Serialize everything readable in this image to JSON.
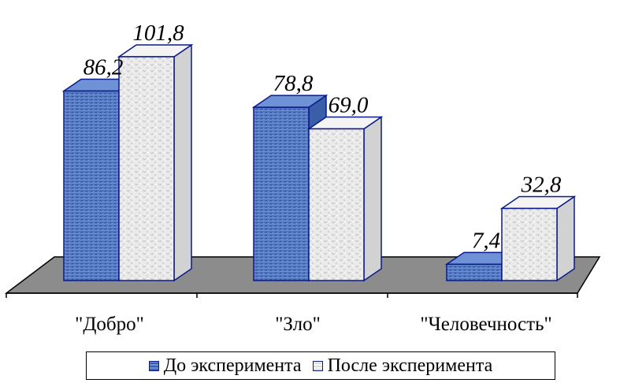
{
  "chart_data": {
    "type": "bar",
    "categories": [
      "\"Добро\"",
      "\"Зло\"",
      "\"Человечность\""
    ],
    "series": [
      {
        "name": "До эксперимента",
        "values": [
          86.2,
          78.8,
          7.4
        ],
        "labels": [
          "86,2",
          "78,8",
          "7,4"
        ]
      },
      {
        "name": "После эксперимента",
        "values": [
          101.8,
          69.0,
          32.8
        ],
        "labels": [
          "101,8",
          "69,0",
          "32,8"
        ]
      }
    ],
    "ylim": [
      0,
      101.8
    ],
    "grid": false,
    "legend_position": "bottom",
    "colors": {
      "series0_front": "#4f74c0",
      "series0_top": "#6f92d6",
      "series0_side": "#3a5fa8",
      "series1_front": "#e6e6e6",
      "series1_top": "#f4f4f4",
      "series1_side": "#d2d2d2",
      "outline": "#0a1a8a",
      "floor": "#8c8c8c"
    }
  }
}
